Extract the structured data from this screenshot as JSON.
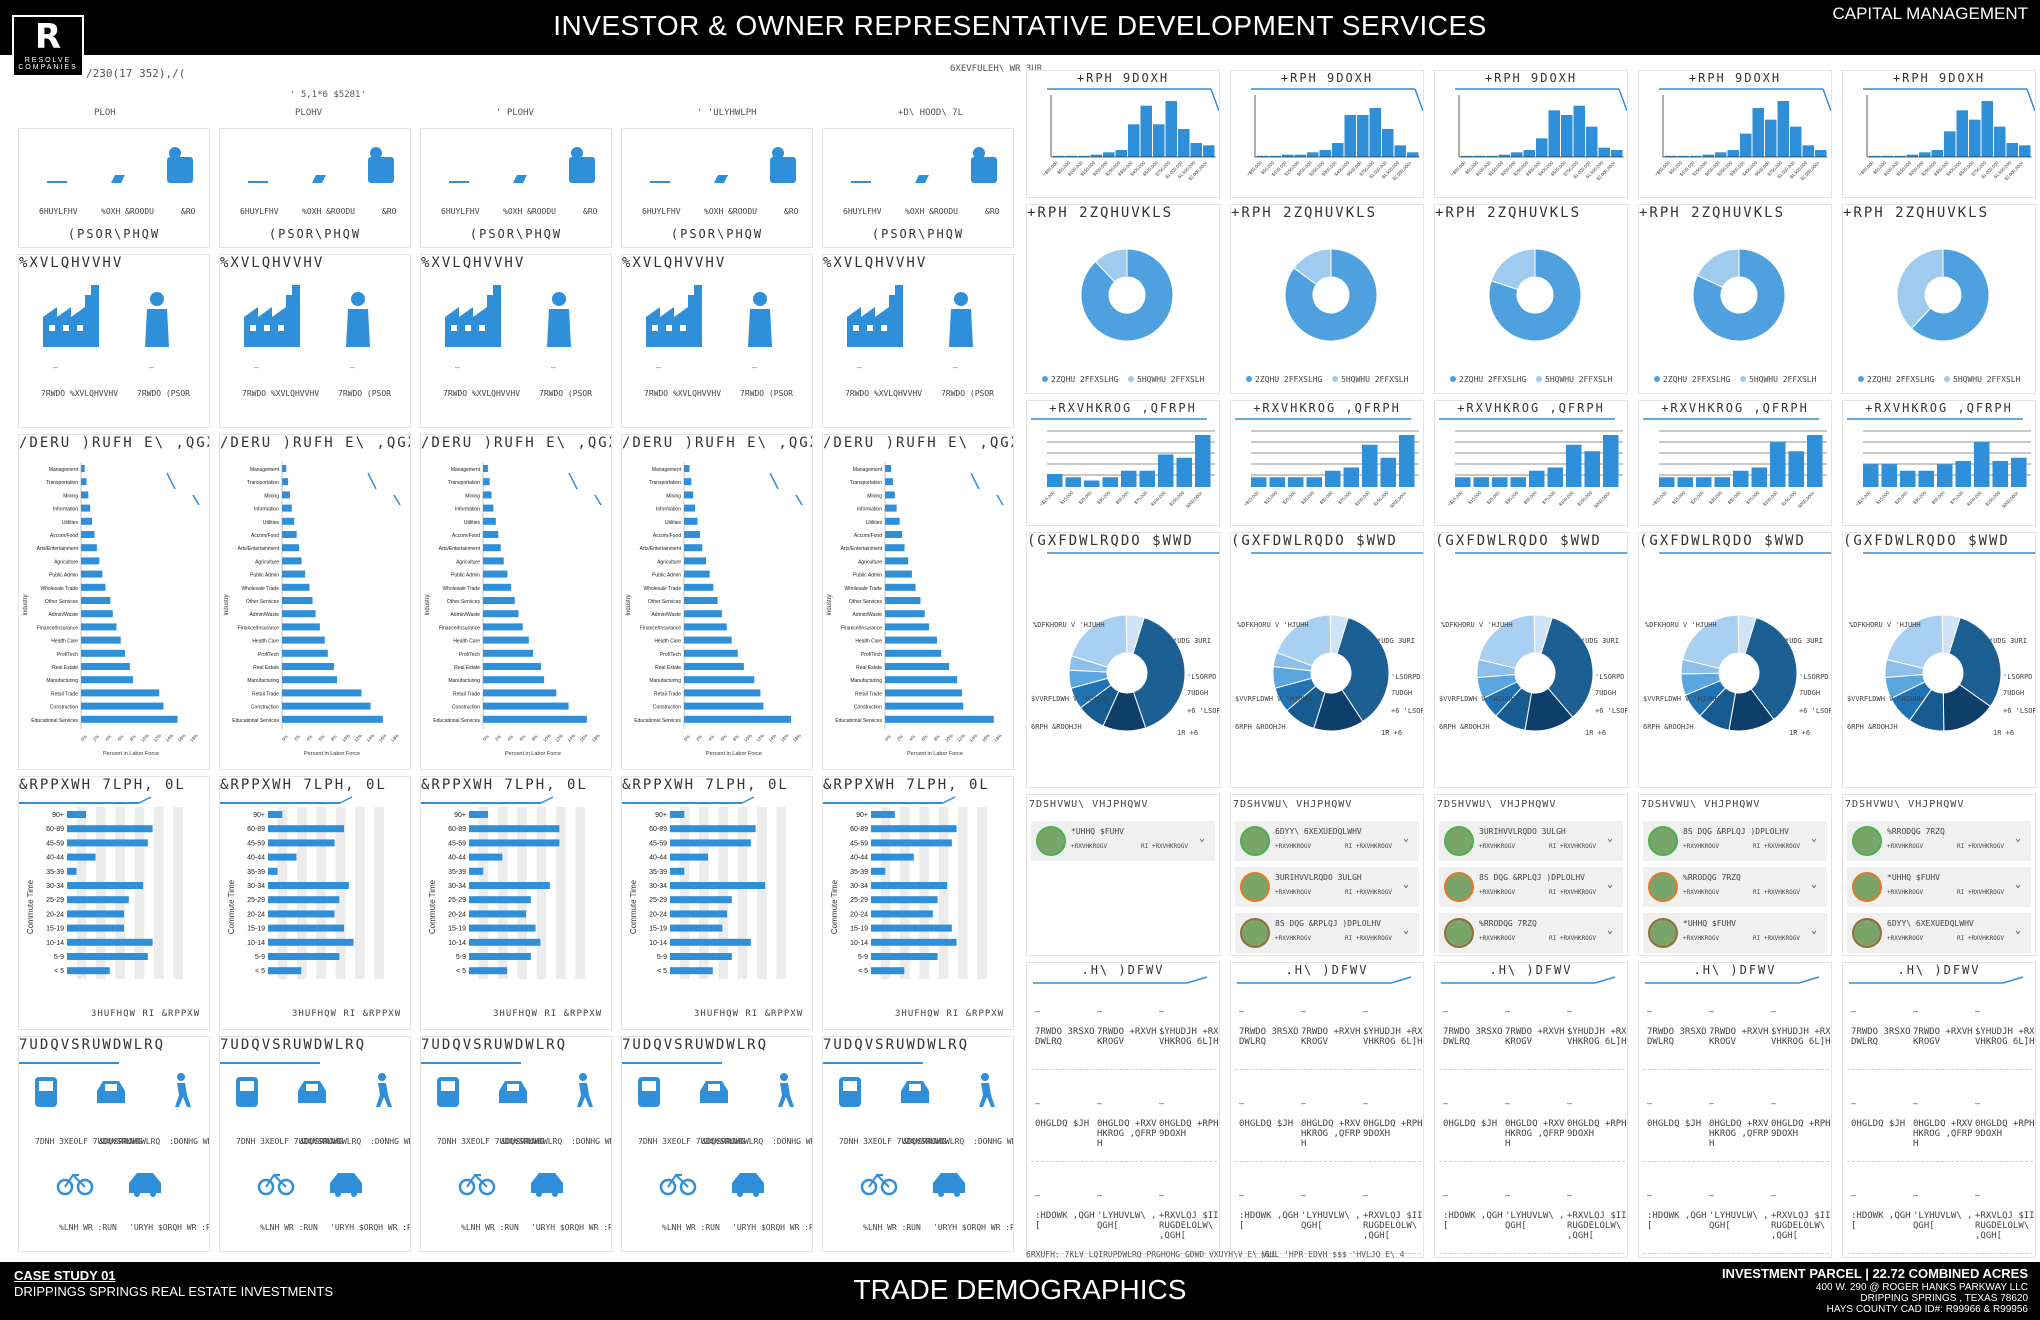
{
  "header": {
    "title": "INVESTOR & OWNER REPRESENTATIVE DEVELOPMENT SERVICES",
    "right_label": "CAPITAL MANAGEMENT",
    "logo_letter": "R",
    "logo_name": "RESOLVE",
    "logo_sub": "COMPANIES"
  },
  "footer": {
    "case_study": "CASE STUDY 01",
    "project": "DRIPPINGS SPRINGS REAL ESTATE  INVESTMENTS",
    "page_title": "TRADE DEMOGRAPHICS",
    "parcel": "INVESTMENT PARCEL  |  22.72 COMBINED ACRES",
    "address1": "400 W. 290 @ ROGER HANKS PARKWAY LLC",
    "address2": "DRIPPING SPRINGS , TEXAS 78620",
    "address3": "HAYS COUNTY CAD ID#: R99966 & R99956"
  },
  "garbled": {
    "left_header": "/230(17 352),/(",
    "right_header": "6XEVFULEH\\ WR 3UR",
    "ring_header": "' 5,1*6 $5281'",
    "col_labels": [
      "PLOH",
      "PLOHV",
      "' PLOHV",
      "' 'ULYHWLPH",
      "+D\\ HOOD\\ 7L"
    ],
    "footer_note": "6RXUFH: 7KLV LQIRUPDWLRQ PRGHOHG GDWD VXUYH\\V E\\ VLL",
    "footer_note2": "(6UL 'HPR EDVH       $$$             'HVLJQ E\\ 4"
  },
  "labels": {
    "employment": "(PSOR\\PHQW",
    "businesses": "%XVLQHVVHV",
    "total_businesses": "7RWDO %XVLQHVVHV",
    "total_employees": "7RWDO (PSOR",
    "servers": "6HUYLFHV",
    "blue_collar": "%OXH &ROODU",
    "white_collar": "&RO",
    "labor_force": "/DERU )RUFH E\\ ,QGXVW",
    "commute": "&RPPXWH 7LPH, 0L",
    "transportation": "7UDQVSRUWDWLRQ",
    "percent_commute": "3HUFHQW RI &RPPXW",
    "home_value": "+RPH 9DOXH",
    "home_ownership": "+RPH 2ZQHUVKLS",
    "household_income": "+RXVHKROG ,QFRPH",
    "education": "(GXFDWLRQDO $WWD",
    "tapestry": "7DSHVWU\\ VHJPHQWV",
    "key_facts": ".H\\ )DFWV",
    "owner_occupied": "2ZQHU 2FFXSLHG",
    "renter_occupied": "5HQWHU 2FFXSLH",
    "percent_labor_force": "Percent in Labor Force",
    "industry_axis": "Industry",
    "commute_axis": "Commute Time",
    "transit": "7DNH 3XEOLF 7UDQVSRUWDWLRQ",
    "carpooled": "&DUSRROHG",
    "walked": ":DONHG WR :RUN",
    "biked": "%LNH WR :RUN",
    "drove_alone": "'URYH $ORQH WR :RUN",
    "total_pop": "7RWDO 3RSXODWLRQ",
    "total_hh": "7RWDO +RXVHKROGV",
    "hh_size": "$YHUDJH +RXVHKROG 6L]H",
    "median_age": "0HGLDQ $JH",
    "median_hh_income": "0HGLDQ +RXVHKROG ,QFRPH",
    "median_home_value": "0HGLDQ +RPH 9DOXH",
    "wealth_index": ":HDOWK ,QGH[",
    "diversity_index": "'LYHUVLW\\ ,QGH[",
    "housing_affordability": "+RXVLQJ $IIRUGDELOLW\\ ,QGH[",
    "units": "8QLWV",
    "age": "$JH",
    "bachelor": "%DFKHORU V 'HJUHH",
    "grad": "*UDG 3URI",
    "some_college": "6RPH &ROOHJH",
    "associate": "$VVRFLDWH V 'HJUHH",
    "hs": "+6 'LSORPD",
    "no_hs": "1R +6",
    "ninth": "'LSORPD",
    "trade": "7UDGH"
  },
  "tapestry_items": [
    "*UHHQ $FUHV",
    "6DYY\\ 6XEXUEDQLWHV",
    "3URIHVVLRQDO 3ULGH",
    "8S DQG &RPLQJ )DPLOLHV",
    "%RRODQG 7RZQ"
  ],
  "tapestry_sub": [
    "+RXVHKROGV",
    "RI +RXVHKROGV"
  ],
  "industries": [
    "Educational Services",
    "Construction",
    "Retail Trade",
    "Manufacturing",
    "Real Estate",
    "Prof/Tech",
    "Health Care",
    "Finance/Insurance",
    "Admin/Waste",
    "Other Services",
    "Wholesale Trade",
    "Public Admin",
    "Agriculture",
    "Arts/Entertainment",
    "Accom/Food",
    "Utilities",
    "Information",
    "Mining",
    "Transportation",
    "Management"
  ],
  "industry_axis_ticks": [
    "0%",
    "2%",
    "4%",
    "6%",
    "8%",
    "10%",
    "12%",
    "14%",
    "16%",
    "18%"
  ],
  "commute_categories": [
    "90+",
    "60-89",
    "45-59",
    "40-44",
    "35-39",
    "30-34",
    "25-29",
    "20-24",
    "15-19",
    "10-14",
    "5-9",
    "< 5"
  ],
  "hv_ticks": [
    "<$50,000",
    "$50,000",
    "$100,000",
    "$150,000",
    "$200,000",
    "$250,000",
    "$300,000",
    "$400,000",
    "$500,000",
    "$750,000",
    "$1,000,000",
    "$1,500,000",
    "$2,000,000+"
  ],
  "hi_ticks": [
    "<$15,000",
    "$15,000",
    "$25,000",
    "$35,000",
    "$50,000",
    "$75,000",
    "$100,000",
    "$150,000",
    "$200,000+"
  ],
  "chart_data": [
    {
      "type": "bar",
      "title": "Labor Force by Industry",
      "orientation": "horizontal",
      "xlabel": "Percent in Labor Force",
      "ylabel": "Industry",
      "xlim": [
        0,
        18
      ],
      "categories": [
        "Educational Services",
        "Construction",
        "Retail Trade",
        "Manufacturing",
        "Real Estate",
        "Prof/Tech",
        "Health Care",
        "Finance/Insurance",
        "Admin/Waste",
        "Other Services",
        "Wholesale Trade",
        "Public Admin",
        "Agriculture",
        "Arts/Entertainment",
        "Accom/Food",
        "Utilities",
        "Information",
        "Mining",
        "Transportation",
        "Management"
      ],
      "series": [
        {
          "values": [
            15.8,
            13.5,
            12.8,
            8.5,
            8.0,
            7.2,
            6.5,
            5.8,
            5.2,
            4.8,
            4.0,
            3.5,
            3.0,
            2.6,
            2.2,
            1.8,
            1.5,
            1.2,
            0.9,
            0.6
          ]
        },
        {
          "values": [
            16.5,
            14.5,
            13.0,
            9.0,
            8.5,
            7.5,
            7.0,
            6.2,
            5.5,
            5.0,
            4.5,
            3.8,
            3.2,
            2.8,
            2.4,
            2.0,
            1.6,
            1.3,
            1.0,
            0.7
          ]
        },
        {
          "values": [
            17.0,
            14.0,
            12.0,
            10.0,
            9.5,
            8.2,
            7.5,
            6.5,
            5.8,
            5.2,
            4.6,
            4.0,
            3.4,
            2.9,
            2.5,
            2.1,
            1.7,
            1.4,
            1.1,
            0.8
          ]
        },
        {
          "values": [
            17.5,
            13.0,
            12.5,
            11.5,
            9.8,
            8.8,
            7.8,
            7.0,
            6.2,
            5.5,
            4.8,
            4.2,
            3.6,
            3.0,
            2.6,
            2.2,
            1.8,
            1.5,
            1.2,
            0.9
          ]
        },
        {
          "values": [
            17.8,
            12.8,
            12.6,
            11.8,
            10.5,
            9.2,
            8.5,
            7.2,
            6.5,
            5.8,
            5.0,
            4.4,
            3.8,
            3.2,
            2.8,
            2.4,
            1.9,
            1.6,
            1.3,
            1.0
          ]
        }
      ]
    },
    {
      "type": "bar",
      "title": "Commute Time",
      "orientation": "horizontal",
      "ylabel": "Commute Time",
      "categories": [
        "90+",
        "60-89",
        "45-59",
        "40-44",
        "35-39",
        "30-34",
        "25-29",
        "20-24",
        "15-19",
        "10-14",
        "5-9",
        "< 5"
      ],
      "series": [
        {
          "values": [
            4,
            18,
            17,
            6,
            2,
            16,
            13,
            12,
            12,
            18,
            17,
            9
          ]
        },
        {
          "values": [
            3,
            16,
            14,
            6,
            2,
            17,
            15,
            14,
            16,
            18,
            15,
            7
          ]
        },
        {
          "values": [
            4,
            19,
            19,
            7,
            3,
            17,
            13,
            12,
            14,
            15,
            13,
            8
          ]
        },
        {
          "values": [
            3,
            18,
            17,
            8,
            3,
            20,
            13,
            12,
            11,
            17,
            13,
            9
          ]
        },
        {
          "values": [
            5,
            18,
            17,
            9,
            3,
            16,
            14,
            13,
            17,
            18,
            14,
            7
          ]
        }
      ]
    },
    {
      "type": "bar",
      "title": "Home Value",
      "categories": [
        "<$50,000",
        "$50,000",
        "$100,000",
        "$150,000",
        "$200,000",
        "$250,000",
        "$300,000",
        "$400,000",
        "$500,000",
        "$750,000",
        "$1,000,000",
        "$1,500,000",
        "$2,000,000+"
      ],
      "series": [
        {
          "values": [
            0.5,
            0.5,
            0.5,
            1,
            2,
            3,
            14,
            22,
            14,
            24,
            12,
            6,
            5
          ]
        },
        {
          "values": [
            0.5,
            0.5,
            1,
            1,
            2,
            3,
            6,
            18,
            18,
            21,
            12,
            5,
            2
          ]
        },
        {
          "values": [
            0.5,
            0.5,
            0.5,
            1,
            2,
            3,
            8,
            20,
            18,
            22,
            13,
            4,
            3
          ]
        },
        {
          "values": [
            0.5,
            0.5,
            0.5,
            1,
            2,
            3,
            10,
            21,
            16,
            24,
            13,
            5,
            3
          ]
        },
        {
          "values": [
            0.5,
            0.5,
            0.5,
            1,
            2,
            3,
            11,
            20,
            16,
            24,
            13,
            6,
            5
          ]
        }
      ]
    },
    {
      "type": "pie",
      "title": "Home Ownership",
      "categories": [
        "Owner Occupied",
        "Renter Occupied"
      ],
      "series": [
        {
          "values": [
            88,
            12
          ]
        },
        {
          "values": [
            85,
            15
          ]
        },
        {
          "values": [
            80,
            20
          ]
        },
        {
          "values": [
            82,
            18
          ]
        },
        {
          "values": [
            62,
            38
          ]
        }
      ]
    },
    {
      "type": "bar",
      "title": "Household Income",
      "categories": [
        "<$15,000",
        "$15,000",
        "$25,000",
        "$35,000",
        "$50,000",
        "$75,000",
        "$100,000",
        "$150,000",
        "$200,000+"
      ],
      "series": [
        {
          "values": [
            4,
            3,
            2,
            3,
            5,
            5,
            10,
            9,
            16
          ]
        },
        {
          "values": [
            3,
            3,
            3,
            3,
            5,
            6,
            13,
            9,
            16
          ]
        },
        {
          "values": [
            3,
            3,
            3,
            3,
            5,
            6,
            13,
            11,
            16
          ]
        },
        {
          "values": [
            3,
            3,
            3,
            3,
            5,
            6,
            14,
            11,
            16
          ]
        },
        {
          "values": [
            7,
            7,
            5,
            5,
            7,
            8,
            14,
            8,
            9
          ]
        }
      ]
    },
    {
      "type": "pie",
      "title": "Educational Attainment",
      "series": [
        {
          "values": [
            40,
            12,
            8,
            6,
            5,
            4,
            20,
            5
          ]
        },
        {
          "values": [
            36,
            14,
            9,
            7,
            6,
            4,
            19,
            5
          ]
        },
        {
          "values": [
            34,
            14,
            9,
            6,
            6,
            5,
            21,
            5
          ]
        },
        {
          "values": [
            35,
            13,
            9,
            7,
            6,
            4,
            21,
            5
          ]
        },
        {
          "values": [
            30,
            15,
            10,
            8,
            6,
            5,
            21,
            5
          ]
        }
      ]
    }
  ]
}
